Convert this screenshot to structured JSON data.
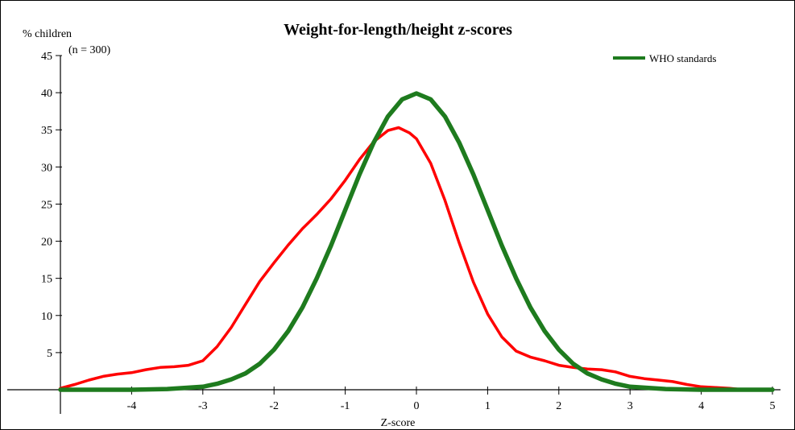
{
  "chart_data": {
    "type": "line",
    "title": "Weight-for-length/height z-scores",
    "ylabel": "% children",
    "sample_label": "(n = 300)",
    "xlabel": "Z-score",
    "xlim": [
      -5,
      5
    ],
    "ylim": [
      0,
      45
    ],
    "x_ticks": [
      -5,
      -4,
      -3,
      -2,
      -1,
      0,
      1,
      2,
      3,
      4,
      5
    ],
    "x_tick_labels": [
      "",
      "-4",
      "-3",
      "-2",
      "-1",
      "0",
      "1",
      "2",
      "3",
      "4",
      "5"
    ],
    "y_ticks": [
      0,
      5,
      10,
      15,
      20,
      25,
      30,
      35,
      40,
      45
    ],
    "y_tick_labels": [
      "",
      "5",
      "10",
      "15",
      "20",
      "25",
      "30",
      "35",
      "40",
      "45"
    ],
    "grid": false,
    "legend": {
      "position": "top-right",
      "entries": [
        {
          "name": "WHO standards",
          "color": "#1e7b1e"
        }
      ]
    },
    "series": [
      {
        "name": "",
        "color": "#ff0000",
        "points": [
          [
            -5.0,
            0.2
          ],
          [
            -4.8,
            0.7
          ],
          [
            -4.6,
            1.3
          ],
          [
            -4.4,
            1.8
          ],
          [
            -4.2,
            2.1
          ],
          [
            -4.0,
            2.3
          ],
          [
            -3.8,
            2.7
          ],
          [
            -3.6,
            3.0
          ],
          [
            -3.4,
            3.1
          ],
          [
            -3.2,
            3.3
          ],
          [
            -3.0,
            3.9
          ],
          [
            -2.8,
            5.8
          ],
          [
            -2.6,
            8.4
          ],
          [
            -2.4,
            11.5
          ],
          [
            -2.2,
            14.6
          ],
          [
            -2.0,
            17.1
          ],
          [
            -1.8,
            19.5
          ],
          [
            -1.6,
            21.7
          ],
          [
            -1.4,
            23.6
          ],
          [
            -1.2,
            25.7
          ],
          [
            -1.0,
            28.2
          ],
          [
            -0.8,
            31.0
          ],
          [
            -0.6,
            33.4
          ],
          [
            -0.4,
            34.9
          ],
          [
            -0.25,
            35.3
          ],
          [
            -0.1,
            34.6
          ],
          [
            0.0,
            33.8
          ],
          [
            0.2,
            30.5
          ],
          [
            0.4,
            25.5
          ],
          [
            0.6,
            19.8
          ],
          [
            0.8,
            14.5
          ],
          [
            1.0,
            10.2
          ],
          [
            1.2,
            7.1
          ],
          [
            1.4,
            5.2
          ],
          [
            1.6,
            4.4
          ],
          [
            1.8,
            3.9
          ],
          [
            2.0,
            3.3
          ],
          [
            2.2,
            3.0
          ],
          [
            2.4,
            2.8
          ],
          [
            2.6,
            2.7
          ],
          [
            2.8,
            2.4
          ],
          [
            3.0,
            1.8
          ],
          [
            3.2,
            1.5
          ],
          [
            3.4,
            1.3
          ],
          [
            3.6,
            1.1
          ],
          [
            3.8,
            0.7
          ],
          [
            4.0,
            0.4
          ],
          [
            4.2,
            0.3
          ],
          [
            4.4,
            0.2
          ],
          [
            4.5,
            0.1
          ]
        ]
      },
      {
        "name": "WHO standards",
        "color": "#1e7b1e",
        "points": [
          [
            -5.0,
            0.0
          ],
          [
            -4.5,
            0.0
          ],
          [
            -4.0,
            0.0
          ],
          [
            -3.5,
            0.1
          ],
          [
            -3.0,
            0.4
          ],
          [
            -2.8,
            0.8
          ],
          [
            -2.6,
            1.4
          ],
          [
            -2.4,
            2.2
          ],
          [
            -2.2,
            3.5
          ],
          [
            -2.0,
            5.4
          ],
          [
            -1.8,
            7.9
          ],
          [
            -1.6,
            11.1
          ],
          [
            -1.4,
            15.0
          ],
          [
            -1.2,
            19.4
          ],
          [
            -1.0,
            24.2
          ],
          [
            -0.8,
            29.0
          ],
          [
            -0.6,
            33.3
          ],
          [
            -0.4,
            36.8
          ],
          [
            -0.2,
            39.1
          ],
          [
            0.0,
            39.9
          ],
          [
            0.2,
            39.1
          ],
          [
            0.4,
            36.8
          ],
          [
            0.6,
            33.3
          ],
          [
            0.8,
            29.0
          ],
          [
            1.0,
            24.2
          ],
          [
            1.2,
            19.4
          ],
          [
            1.4,
            15.0
          ],
          [
            1.6,
            11.1
          ],
          [
            1.8,
            7.9
          ],
          [
            2.0,
            5.4
          ],
          [
            2.2,
            3.5
          ],
          [
            2.4,
            2.2
          ],
          [
            2.6,
            1.4
          ],
          [
            2.8,
            0.8
          ],
          [
            3.0,
            0.4
          ],
          [
            3.5,
            0.1
          ],
          [
            4.0,
            0.0
          ],
          [
            4.5,
            0.0
          ],
          [
            5.0,
            0.0
          ]
        ]
      }
    ]
  }
}
